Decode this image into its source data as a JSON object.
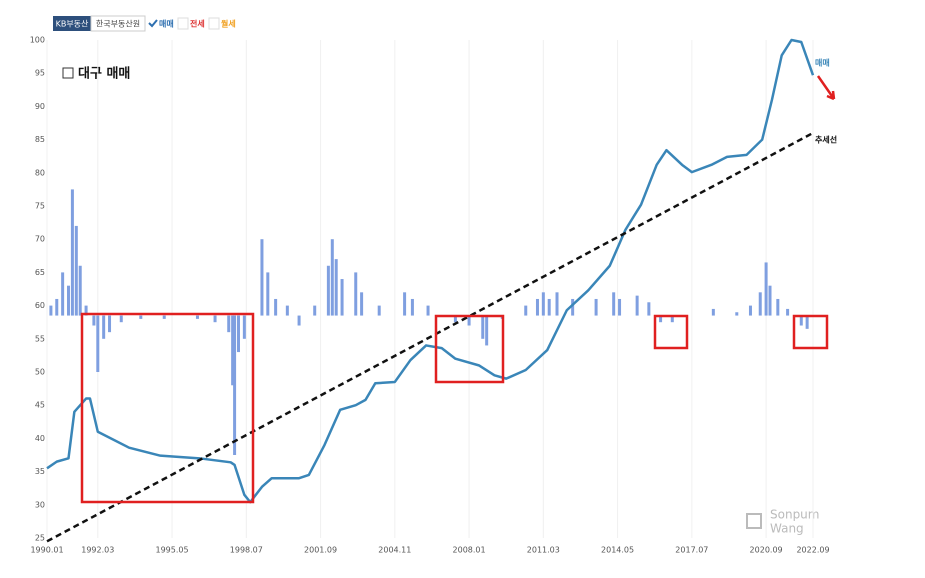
{
  "tabs": [
    "KB부동산",
    "한국부동산원",
    "매매",
    "전세",
    "월세"
  ],
  "watermark": [
    "Sonpum",
    "Wang"
  ],
  "chart_data": {
    "type": "line",
    "title": "대구 매매",
    "xlim": [
      "1990.01",
      "2022.09"
    ],
    "xticks": [
      "1990.01",
      "1992.03",
      "1995.05",
      "1998.07",
      "2001.09",
      "2004.11",
      "2008.01",
      "2011.03",
      "2014.05",
      "2017.07",
      "2020.09",
      "2022.09"
    ],
    "ylim": [
      25,
      100
    ],
    "yticks": [
      25,
      30,
      35,
      40,
      45,
      50,
      55,
      60,
      65,
      70,
      75,
      80,
      85,
      90,
      95,
      100
    ],
    "grid": "x",
    "series": [
      {
        "name": "매매",
        "color": "#3a86b8",
        "x": [
          "1990.01",
          "1990.06",
          "1990.12",
          "1991.03",
          "1991.09",
          "1991.11",
          "1992.03",
          "1993.07",
          "1994.11",
          "1996.07",
          "1997.11",
          "1998.01",
          "1998.06",
          "1998.09",
          "1999.03",
          "1999.08",
          "2000.10",
          "2001.03",
          "2001.11",
          "2002.07",
          "2003.03",
          "2003.08",
          "2004.01",
          "2004.11",
          "2005.07",
          "2006.03",
          "2006.11",
          "2007.06",
          "2008.06",
          "2009.02",
          "2009.08",
          "2010.06",
          "2011.05",
          "2012.03",
          "2013.02",
          "2014.01",
          "2014.09",
          "2015.05",
          "2016.01",
          "2016.06",
          "2017.02",
          "2017.07",
          "2018.05",
          "2019.01",
          "2019.11",
          "2020.07",
          "2020.12",
          "2021.05",
          "2021.10",
          "2022.03",
          "2022.09"
        ],
        "values": [
          35.5,
          36.5,
          37,
          44,
          46,
          46,
          41,
          38.6,
          37.4,
          37,
          36.4,
          36,
          31.5,
          30.4,
          32.7,
          34,
          34,
          34.5,
          39,
          44.3,
          45,
          45.8,
          48.3,
          48.5,
          51.8,
          54,
          53.6,
          52,
          51,
          49.5,
          49,
          50.3,
          53.3,
          59.3,
          62.3,
          66,
          71.4,
          75.2,
          81.2,
          83.4,
          81.2,
          80.1,
          81.2,
          82.4,
          82.7,
          85,
          91,
          97.7,
          100,
          99.7,
          94.7
        ]
      },
      {
        "name": "추세선",
        "color": "#111111",
        "dash": true,
        "x": [
          "1990.01",
          "2022.09"
        ],
        "values": [
          24.5,
          86
        ]
      }
    ],
    "bars": {
      "color": "#7f9fe0",
      "baseline": 58.5,
      "x": [
        "1990.03",
        "1990.06",
        "1990.09",
        "1990.12",
        "1991.02",
        "1991.04",
        "1991.06",
        "1991.09",
        "1992.01",
        "1992.03",
        "1992.06",
        "1992.09",
        "1993.03",
        "1994.01",
        "1995.01",
        "1996.06",
        "1997.03",
        "1997.10",
        "1997.12",
        "1998.01",
        "1998.03",
        "1998.06",
        "1999.03",
        "1999.06",
        "1999.10",
        "2000.04",
        "2000.10",
        "2001.06",
        "2002.01",
        "2002.03",
        "2002.05",
        "2002.08",
        "2003.03",
        "2003.06",
        "2004.03",
        "2005.04",
        "2005.08",
        "2006.04",
        "2007.06",
        "2008.01",
        "2008.08",
        "2008.10",
        "2009.06",
        "2010.06",
        "2010.12",
        "2011.03",
        "2011.06",
        "2011.10",
        "2012.06",
        "2013.06",
        "2014.03",
        "2014.06",
        "2015.03",
        "2015.09",
        "2016.03",
        "2016.09",
        "2018.06",
        "2019.06",
        "2020.01",
        "2020.06",
        "2020.09",
        "2020.11",
        "2021.03",
        "2021.08",
        "2022.03",
        "2022.06"
      ],
      "values": [
        60,
        61,
        65,
        63,
        77.5,
        72,
        66,
        60,
        57,
        50,
        55,
        56,
        57.5,
        58,
        58,
        58,
        57.5,
        56,
        48,
        37.5,
        53,
        55,
        70,
        65,
        61,
        60,
        57,
        60,
        66,
        70,
        67,
        64,
        65,
        62,
        60,
        62,
        61,
        60,
        57.5,
        57,
        55,
        54,
        58,
        60,
        61,
        62,
        61,
        62,
        61,
        61,
        62,
        61,
        61.5,
        60.5,
        57.5,
        57.5,
        59.5,
        59,
        60,
        62,
        66.5,
        63,
        61,
        59.5,
        57,
        56.5
      ]
    }
  }
}
